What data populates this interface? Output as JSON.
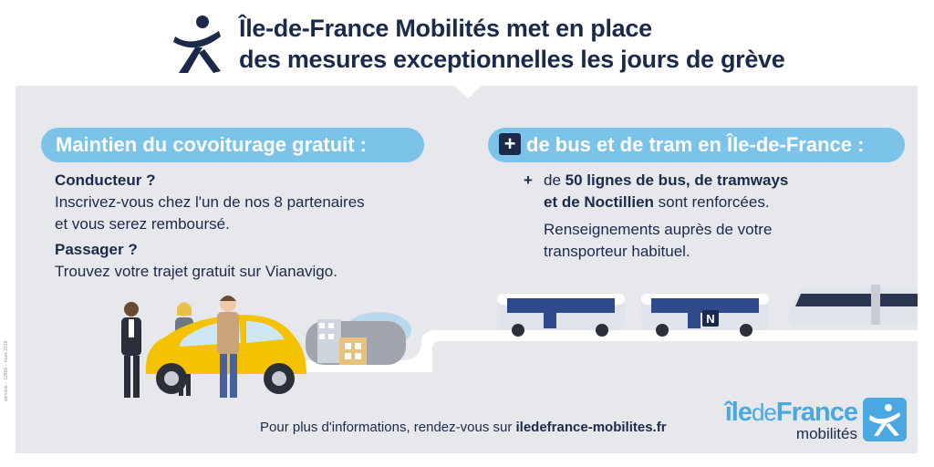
{
  "header": {
    "title_line1": "Île-de-France Mobilités met en place",
    "title_line2": "des mesures exceptionnelles les jours de grève"
  },
  "left": {
    "pill": "Maintien du covoiturage gratuit :",
    "conducteur_title": "Conducteur ?",
    "conducteur_text1": "Inscrivez-vous chez l'un de nos 8 partenaires",
    "conducteur_text2": "et vous serez remboursé.",
    "passager_title": "Passager ?",
    "passager_text": "Trouvez votre trajet gratuit sur Vianavigo."
  },
  "right": {
    "pill_plus": "+",
    "pill": "de bus et de tram en Île-de-France :",
    "bullet": "+",
    "line1_pre": "de ",
    "line1_bold": "50 lignes de bus, de tramways",
    "line2_bold": "et de Noctillien",
    "line2_post": " sont renforcées.",
    "renseign1": "Renseignements auprès de votre",
    "renseign2": "transporteur habituel."
  },
  "vehicles": {
    "noctilien_badge": "N"
  },
  "footer": {
    "pre": "Pour plus d'informations, rendez-vous sur ",
    "link": "iledefrance-mobilites.fr"
  },
  "brand": {
    "name_ile": "île",
    "name_de": "de",
    "name_france": "France",
    "sub": "mobilités"
  },
  "credit": "semnoe – 12885 – mars 2018",
  "colors": {
    "accent": "#7cc3ea",
    "navy": "#1b2a4a",
    "panel": "#e7e8ec",
    "car": "#f5c200",
    "brand": "#4aa8e0"
  }
}
